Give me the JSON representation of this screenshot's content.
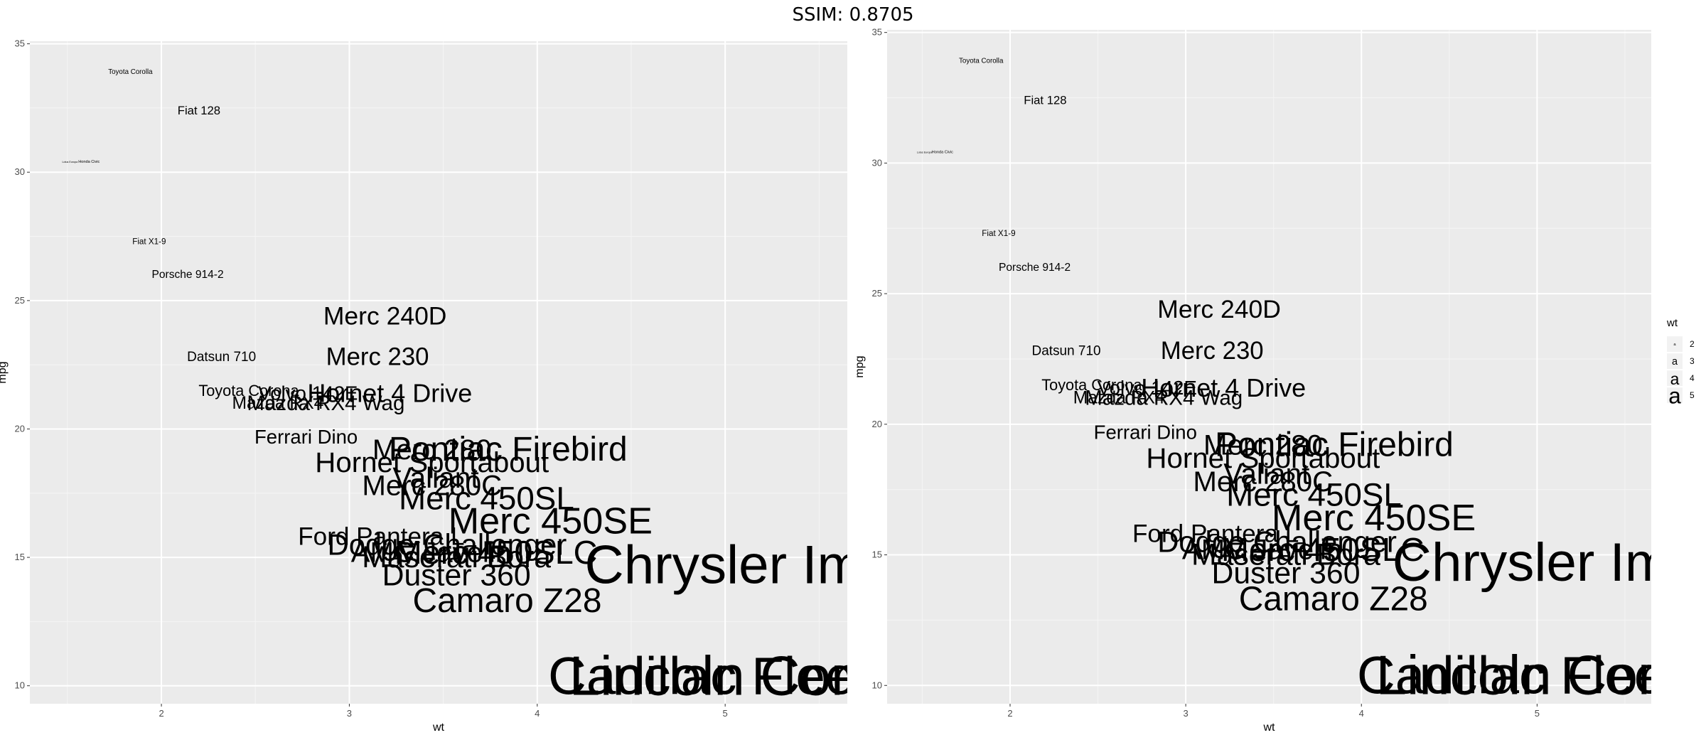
{
  "figure_title": "SSIM: 0.8705",
  "chart_data": [
    {
      "type": "scatter",
      "title": "",
      "xlabel": "wt",
      "ylabel": "mpg",
      "xlim": [
        1.3,
        5.65
      ],
      "ylim": [
        9.3,
        35.1
      ],
      "xticks": [
        2,
        3,
        4,
        5
      ],
      "yticks": [
        10,
        15,
        20,
        25,
        30,
        35
      ],
      "grid": true,
      "legend": "none",
      "colors": {
        "panel": "#ebebeb",
        "grid_major": "#ffffff",
        "text": "#000000"
      },
      "points": [
        {
          "label": "Toyota Corolla",
          "x": 1.835,
          "y": 33.9
        },
        {
          "label": "Fiat 128",
          "x": 2.2,
          "y": 32.4
        },
        {
          "label": "Lotus Europa",
          "x": 1.513,
          "y": 30.4
        },
        {
          "label": "Honda Civic",
          "x": 1.615,
          "y": 30.4
        },
        {
          "label": "Fiat X1-9",
          "x": 1.935,
          "y": 27.3
        },
        {
          "label": "Porsche 914-2",
          "x": 2.14,
          "y": 26.0
        },
        {
          "label": "Merc 240D",
          "x": 3.19,
          "y": 24.4
        },
        {
          "label": "Datsun 710",
          "x": 2.32,
          "y": 22.8
        },
        {
          "label": "Merc 230",
          "x": 3.15,
          "y": 22.8
        },
        {
          "label": "Toyota Corona",
          "x": 2.465,
          "y": 21.5
        },
        {
          "label": "Volvo 142E",
          "x": 2.78,
          "y": 21.4
        },
        {
          "label": "Hornet 4 Drive",
          "x": 3.215,
          "y": 21.4
        },
        {
          "label": "Mazda RX4",
          "x": 2.62,
          "y": 21.0
        },
        {
          "label": "Mazda RX4 Wag",
          "x": 2.875,
          "y": 21.0
        },
        {
          "label": "Ferrari Dino",
          "x": 2.77,
          "y": 19.7
        },
        {
          "label": "Merc 280",
          "x": 3.44,
          "y": 19.2
        },
        {
          "label": "Pontiac Firebird",
          "x": 3.845,
          "y": 19.2
        },
        {
          "label": "Hornet Sportabout",
          "x": 3.44,
          "y": 18.7
        },
        {
          "label": "Valiant",
          "x": 3.46,
          "y": 18.1
        },
        {
          "label": "Merc 280C",
          "x": 3.44,
          "y": 17.8
        },
        {
          "label": "Merc 450SL",
          "x": 3.73,
          "y": 17.3
        },
        {
          "label": "Merc 450SE",
          "x": 4.07,
          "y": 16.4
        },
        {
          "label": "Ford Pantera L",
          "x": 3.17,
          "y": 15.8
        },
        {
          "label": "Dodge Challenger",
          "x": 3.52,
          "y": 15.5
        },
        {
          "label": "AMC Javelin",
          "x": 3.435,
          "y": 15.2
        },
        {
          "label": "Merc 450SLC",
          "x": 3.78,
          "y": 15.2
        },
        {
          "label": "Maserati Bora",
          "x": 3.57,
          "y": 15.0
        },
        {
          "label": "Chrysler Imperial",
          "x": 5.345,
          "y": 14.7
        },
        {
          "label": "Duster 360",
          "x": 3.57,
          "y": 14.3
        },
        {
          "label": "Camaro Z28",
          "x": 3.84,
          "y": 13.3
        },
        {
          "label": "Cadillac Fleetwood",
          "x": 5.25,
          "y": 10.4
        },
        {
          "label": "Lincoln Continental",
          "x": 5.424,
          "y": 10.4
        }
      ]
    },
    {
      "type": "scatter",
      "title": "",
      "xlabel": "wt",
      "ylabel": "mpg",
      "xlim": [
        1.3,
        5.65
      ],
      "ylim": [
        9.3,
        35.1
      ],
      "xticks": [
        2,
        3,
        4,
        5
      ],
      "yticks": [
        10,
        15,
        20,
        25,
        30,
        35
      ],
      "grid": true,
      "legend": "right",
      "legend_title": "wt",
      "legend_entries": [
        {
          "glyph": "a",
          "label": "2"
        },
        {
          "glyph": "a",
          "label": "3"
        },
        {
          "glyph": "a",
          "label": "4"
        },
        {
          "glyph": "a",
          "label": "5"
        }
      ],
      "colors": {
        "panel": "#ebebeb",
        "grid_major": "#ffffff",
        "legend_key": "#f2f2f2",
        "text": "#000000"
      },
      "points": [
        {
          "label": "Toyota Corolla",
          "x": 1.835,
          "y": 33.9
        },
        {
          "label": "Fiat 128",
          "x": 2.2,
          "y": 32.4
        },
        {
          "label": "Lotus Europa",
          "x": 1.513,
          "y": 30.4
        },
        {
          "label": "Honda Civic",
          "x": 1.615,
          "y": 30.4
        },
        {
          "label": "Fiat X1-9",
          "x": 1.935,
          "y": 27.3
        },
        {
          "label": "Porsche 914-2",
          "x": 2.14,
          "y": 26.0
        },
        {
          "label": "Merc 240D",
          "x": 3.19,
          "y": 24.4
        },
        {
          "label": "Datsun 710",
          "x": 2.32,
          "y": 22.8
        },
        {
          "label": "Merc 230",
          "x": 3.15,
          "y": 22.8
        },
        {
          "label": "Toyota Corona",
          "x": 2.465,
          "y": 21.5
        },
        {
          "label": "Volvo 142E",
          "x": 2.78,
          "y": 21.4
        },
        {
          "label": "Hornet 4 Drive",
          "x": 3.215,
          "y": 21.4
        },
        {
          "label": "Mazda RX4",
          "x": 2.62,
          "y": 21.0
        },
        {
          "label": "Mazda RX4 Wag",
          "x": 2.875,
          "y": 21.0
        },
        {
          "label": "Ferrari Dino",
          "x": 2.77,
          "y": 19.7
        },
        {
          "label": "Merc 280",
          "x": 3.44,
          "y": 19.2
        },
        {
          "label": "Pontiac Firebird",
          "x": 3.845,
          "y": 19.2
        },
        {
          "label": "Hornet Sportabout",
          "x": 3.44,
          "y": 18.7
        },
        {
          "label": "Valiant",
          "x": 3.46,
          "y": 18.1
        },
        {
          "label": "Merc 280C",
          "x": 3.44,
          "y": 17.8
        },
        {
          "label": "Merc 450SL",
          "x": 3.73,
          "y": 17.3
        },
        {
          "label": "Merc 450SE",
          "x": 4.07,
          "y": 16.4
        },
        {
          "label": "Ford Pantera L",
          "x": 3.17,
          "y": 15.8
        },
        {
          "label": "Dodge Challenger",
          "x": 3.52,
          "y": 15.5
        },
        {
          "label": "AMC Javelin",
          "x": 3.435,
          "y": 15.2
        },
        {
          "label": "Merc 450SLC",
          "x": 3.78,
          "y": 15.2
        },
        {
          "label": "Maserati Bora",
          "x": 3.57,
          "y": 15.0
        },
        {
          "label": "Chrysler Imperial",
          "x": 5.345,
          "y": 14.7
        },
        {
          "label": "Duster 360",
          "x": 3.57,
          "y": 14.3
        },
        {
          "label": "Camaro Z28",
          "x": 3.84,
          "y": 13.3
        },
        {
          "label": "Cadillac Fleetwood",
          "x": 5.25,
          "y": 10.4
        },
        {
          "label": "Lincoln Continental",
          "x": 5.424,
          "y": 10.4
        }
      ]
    }
  ]
}
